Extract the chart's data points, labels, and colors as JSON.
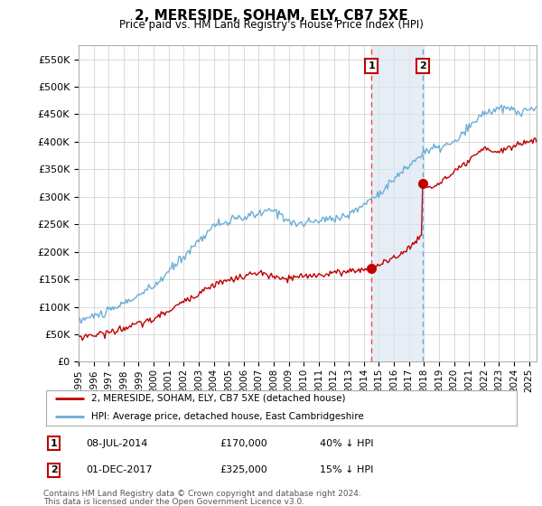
{
  "title": "2, MERESIDE, SOHAM, ELY, CB7 5XE",
  "subtitle": "Price paid vs. HM Land Registry's House Price Index (HPI)",
  "ylabel_ticks": [
    "£0",
    "£50K",
    "£100K",
    "£150K",
    "£200K",
    "£250K",
    "£300K",
    "£350K",
    "£400K",
    "£450K",
    "£500K",
    "£550K"
  ],
  "ytick_values": [
    0,
    50000,
    100000,
    150000,
    200000,
    250000,
    300000,
    350000,
    400000,
    450000,
    500000,
    550000
  ],
  "ylim": [
    0,
    575000
  ],
  "xlim_start": 1995.0,
  "xlim_end": 2025.5,
  "sale1_x": 2014.52,
  "sale1_y": 170000,
  "sale1_label": "1",
  "sale1_date": "08-JUL-2014",
  "sale1_price": "£170,000",
  "sale1_hpi": "40% ↓ HPI",
  "sale2_x": 2017.92,
  "sale2_y": 325000,
  "sale2_label": "2",
  "sale2_date": "01-DEC-2017",
  "sale2_price": "£325,000",
  "sale2_hpi": "15% ↓ HPI",
  "hpi_color": "#6baed6",
  "sale_color": "#c00000",
  "shade_color": "#dce6f1",
  "vline1_color": "#ff4444",
  "vline1_style": "--",
  "vline2_color": "#6baed6",
  "vline2_style": "--",
  "legend_line1": "2, MERESIDE, SOHAM, ELY, CB7 5XE (detached house)",
  "legend_line2": "HPI: Average price, detached house, East Cambridgeshire",
  "footer1": "Contains HM Land Registry data © Crown copyright and database right 2024.",
  "footer2": "This data is licensed under the Open Government Licence v3.0.",
  "xtick_years": [
    1995,
    1996,
    1997,
    1998,
    1999,
    2000,
    2001,
    2002,
    2003,
    2004,
    2005,
    2006,
    2007,
    2008,
    2009,
    2010,
    2011,
    2012,
    2013,
    2014,
    2015,
    2016,
    2017,
    2018,
    2019,
    2020,
    2021,
    2022,
    2023,
    2024,
    2025
  ]
}
